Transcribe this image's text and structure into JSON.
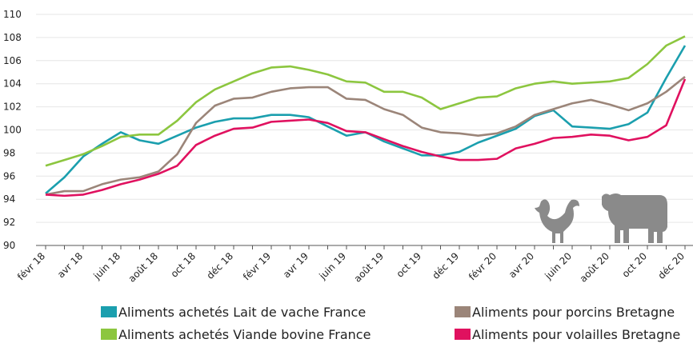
{
  "chart_data": {
    "type": "line",
    "categories": [
      "févr 18",
      null,
      "avr 18",
      null,
      "juin 18",
      null,
      "août 18",
      null,
      "oct 18",
      null,
      "déc 18",
      null,
      "févr 19",
      null,
      "avr 19",
      null,
      "juin 19",
      null,
      "août 19",
      null,
      "oct 19",
      null,
      "déc 19",
      null,
      "févr 20",
      null,
      "avr 20",
      null,
      "juin 20",
      null,
      "août 20",
      null,
      "oct 20",
      null,
      "déc 20"
    ],
    "series": [
      {
        "name": "Aliments achetés Lait de vache France",
        "color": "#1b9fae",
        "values": [
          94.5,
          95.9,
          97.7,
          98.8,
          99.8,
          99.1,
          98.8,
          99.5,
          100.2,
          100.7,
          101.0,
          101.0,
          101.3,
          101.3,
          101.1,
          100.3,
          99.5,
          99.8,
          99.0,
          98.4,
          97.8,
          97.8,
          98.1,
          98.9,
          99.5,
          100.1,
          101.2,
          101.7,
          100.3,
          100.2,
          100.1,
          100.5,
          101.5,
          104.5,
          107.3
        ]
      },
      {
        "name": "Aliments achetés Viande bovine France",
        "color": "#8cc63f",
        "values": [
          96.9,
          97.4,
          97.9,
          98.6,
          99.4,
          99.6,
          99.6,
          100.8,
          102.4,
          103.5,
          104.2,
          104.9,
          105.4,
          105.5,
          105.2,
          104.8,
          104.2,
          104.1,
          103.3,
          103.3,
          102.8,
          101.8,
          102.3,
          102.8,
          102.9,
          103.6,
          104.0,
          104.2,
          104.0,
          104.1,
          104.2,
          104.5,
          105.7,
          107.3,
          108.1
        ]
      },
      {
        "name": "Aliments pour porcins Bretagne",
        "color": "#9b8579",
        "values": [
          94.4,
          94.7,
          94.7,
          95.3,
          95.7,
          95.9,
          96.4,
          97.9,
          100.6,
          102.1,
          102.7,
          102.8,
          103.3,
          103.6,
          103.7,
          103.7,
          102.7,
          102.6,
          101.8,
          101.3,
          100.2,
          99.8,
          99.7,
          99.5,
          99.7,
          100.3,
          101.3,
          101.8,
          102.3,
          102.6,
          102.2,
          101.7,
          102.3,
          103.3,
          104.6
        ]
      },
      {
        "name": "Aliments pour volailles Bretagne",
        "color": "#e0115f",
        "values": [
          94.4,
          94.3,
          94.4,
          94.8,
          95.3,
          95.7,
          96.2,
          96.9,
          98.7,
          99.5,
          100.1,
          100.2,
          100.7,
          100.8,
          100.9,
          100.6,
          99.9,
          99.8,
          99.2,
          98.6,
          98.1,
          97.7,
          97.4,
          97.4,
          97.5,
          98.4,
          98.8,
          99.3,
          99.4,
          99.6,
          99.5,
          99.1,
          99.4,
          100.4,
          104.4
        ]
      }
    ],
    "ylim": [
      90,
      110
    ],
    "yticks": [
      90,
      92,
      94,
      96,
      98,
      100,
      102,
      104,
      106,
      108,
      110
    ],
    "grid": true
  }
}
